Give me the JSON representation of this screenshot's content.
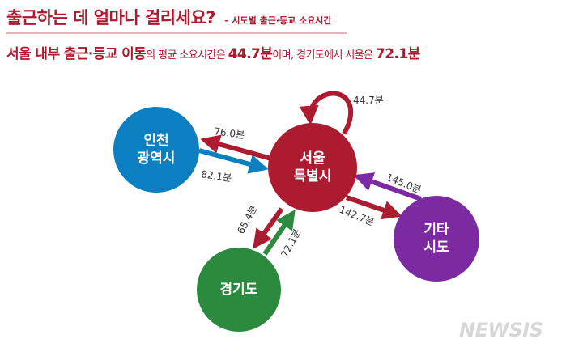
{
  "header": {
    "title": "출근하는 데 얼마나 걸리세요?",
    "subtitle_tag": "– 시도별 출근·등교 소요시간"
  },
  "summary": {
    "part1": "서울 내부 출근·등교 이동",
    "part2": "의 평균 소요시간은 ",
    "part3": "44.7분",
    "part4": "이며, 경기도에서 서울은 ",
    "part5": "72.1분"
  },
  "nodes": {
    "incheon": [
      "인천",
      "광역시"
    ],
    "seoul": [
      "서울",
      "특별시"
    ],
    "gyeonggi": [
      "경기도"
    ],
    "other": [
      "기타",
      "시도"
    ]
  },
  "edges": {
    "seoul_internal": "44.7분",
    "seoul_to_incheon": "76.0분",
    "incheon_to_seoul": "82.1분",
    "seoul_to_gyeonggi": "65.4분",
    "gyeonggi_to_seoul": "72.1분",
    "seoul_to_other": "142.7분",
    "other_to_seoul": "145.0분"
  },
  "colors": {
    "accent": "#b0182e",
    "seoul": "#ac1b30",
    "incheon": "#0b7fc2",
    "gyeonggi": "#2c8a3e",
    "other": "#7b2aa1"
  },
  "watermark": "NEWSIS"
}
